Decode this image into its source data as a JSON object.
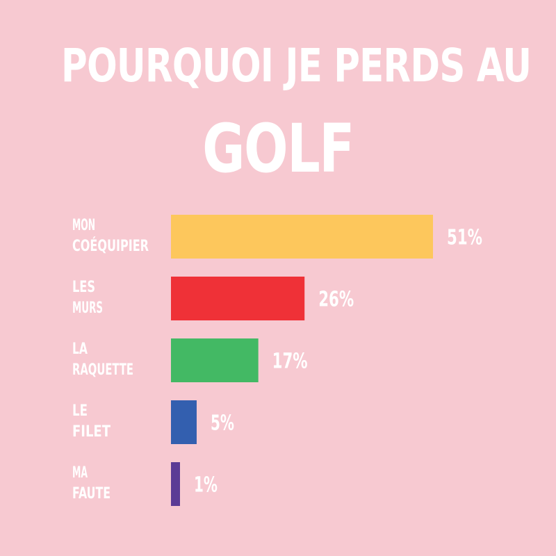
{
  "title": {
    "line1": "POURQUOI JE PERDS AU",
    "line2": "GOLF"
  },
  "colors": {
    "background": "#f7c9d1",
    "text": "#ffffff"
  },
  "chart_data": {
    "type": "bar",
    "orientation": "horizontal",
    "title": "POURQUOI JE PERDS AU GOLF",
    "categories": [
      [
        "MON",
        "COÉQUIPIER"
      ],
      [
        "LES",
        "MURS"
      ],
      [
        "LA",
        "RAQUETTE"
      ],
      [
        "LE",
        "FILET"
      ],
      [
        "MA",
        "FAUTE"
      ]
    ],
    "values": [
      51,
      26,
      17,
      5,
      1
    ],
    "value_labels": [
      "51%",
      "26%",
      "17%",
      "5%",
      "1%"
    ],
    "colors": [
      "#fdc75c",
      "#ef3137",
      "#43b964",
      "#335faf",
      "#5b3b95"
    ],
    "xlim": [
      0,
      51
    ],
    "grid": false,
    "legend": "none"
  }
}
